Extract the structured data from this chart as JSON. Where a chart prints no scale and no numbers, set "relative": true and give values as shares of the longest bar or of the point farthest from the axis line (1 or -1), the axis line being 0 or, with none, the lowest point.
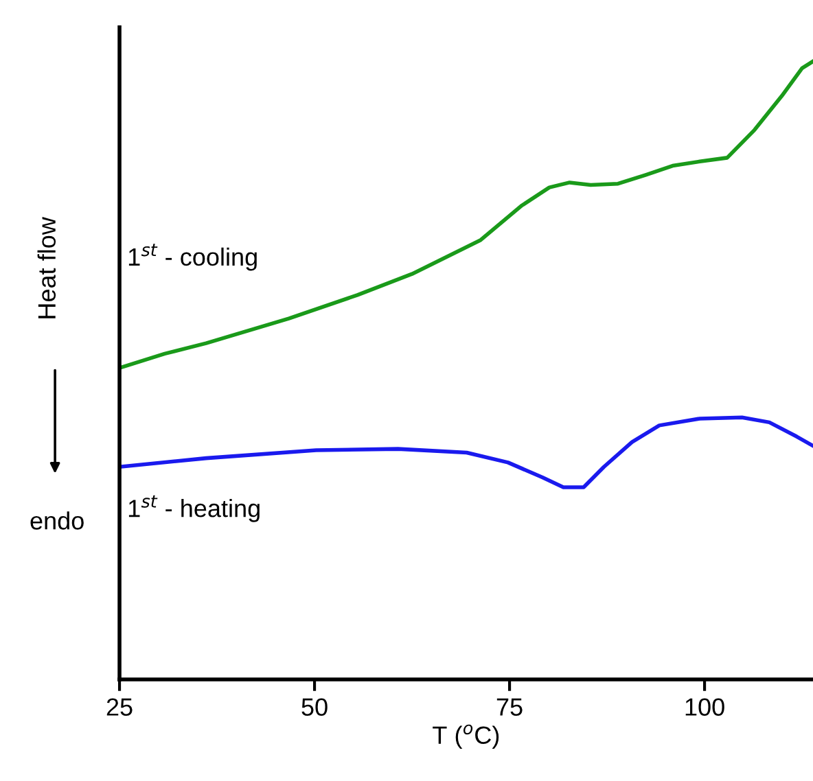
{
  "chart_data": {
    "type": "line",
    "xlabel": "T ($^{o}$C)",
    "ylabel": "Heat flow",
    "annotations": [
      "endo"
    ],
    "relative": true,
    "xlim": [
      25,
      113.9
    ],
    "xticks": [
      25,
      50,
      75,
      100
    ],
    "grid": false,
    "legend": false,
    "tick_labels": "x",
    "series": [
      {
        "name": "1$^{st}$ - cooling",
        "color": "#1a9a1a",
        "x": [
          25.0,
          30.8,
          36.1,
          46.7,
          55.5,
          62.5,
          71.3,
          76.6,
          80.1,
          82.7,
          85.4,
          88.9,
          92.4,
          95.9,
          99.4,
          102.9,
          106.4,
          109.9,
          112.5,
          113.9
        ],
        "values": [
          0.504,
          0.527,
          0.544,
          0.584,
          0.622,
          0.656,
          0.711,
          0.767,
          0.796,
          0.804,
          0.8,
          0.802,
          0.816,
          0.831,
          0.838,
          0.844,
          0.889,
          0.944,
          0.989,
          1.0
        ]
      },
      {
        "name": "1$^{st}$ - heating",
        "color": "#1a1aee",
        "x": [
          25.0,
          36.1,
          50.2,
          60.7,
          69.5,
          74.8,
          79.2,
          81.9,
          84.5,
          87.1,
          90.7,
          94.2,
          99.4,
          104.8,
          108.3,
          111.8,
          113.9
        ],
        "values": [
          0.344,
          0.358,
          0.371,
          0.373,
          0.367,
          0.351,
          0.327,
          0.311,
          0.311,
          0.344,
          0.384,
          0.411,
          0.422,
          0.424,
          0.416,
          0.393,
          0.378
        ]
      }
    ]
  }
}
